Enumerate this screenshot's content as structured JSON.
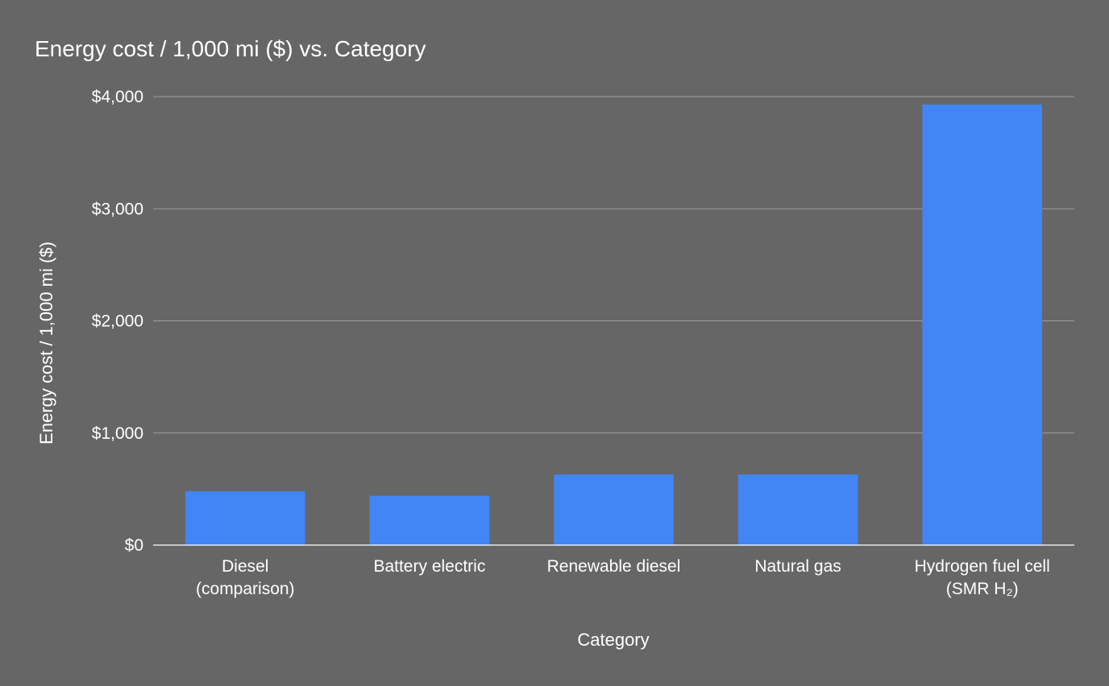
{
  "chart_data": {
    "type": "bar",
    "title": "Energy cost / 1,000 mi ($) vs. Category",
    "xlabel": "Category",
    "ylabel": "Energy cost / 1,000 mi ($)",
    "ylim": [
      0,
      4000
    ],
    "yticks": [
      0,
      1000,
      2000,
      3000,
      4000
    ],
    "ytick_labels": [
      "$0",
      "$1,000",
      "$2,000",
      "$3,000",
      "$4,000"
    ],
    "categories": [
      [
        "Diesel",
        "(comparison)"
      ],
      [
        "Battery electric"
      ],
      [
        "Renewable diesel"
      ],
      [
        "Natural gas"
      ],
      [
        "Hydrogen fuel cell",
        "(SMR H₂)"
      ]
    ],
    "values": [
      480,
      440,
      630,
      630,
      3930
    ],
    "bar_color": "#4285f4",
    "grid": true,
    "legend": "none"
  }
}
